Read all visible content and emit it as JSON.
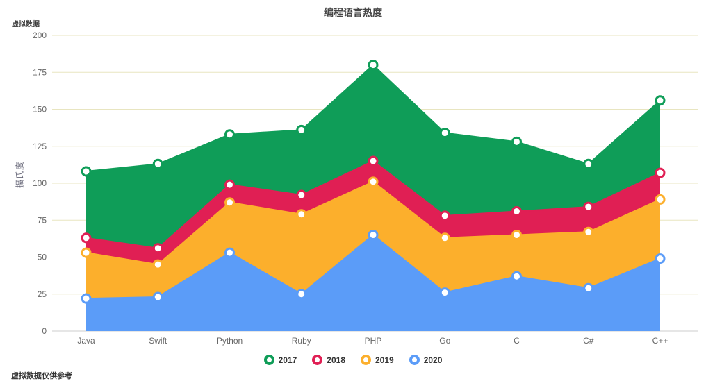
{
  "annotations": {
    "top_left": "虚拟数据",
    "bottom_left": "虚拟数据仅供参考"
  },
  "chart_data": {
    "type": "area",
    "stacked": true,
    "title": "编程语言热度",
    "xlabel": "",
    "ylabel": "摄氏度",
    "ylim": [
      0,
      200
    ],
    "y_ticks": [
      0,
      25,
      50,
      75,
      100,
      125,
      150,
      175,
      200
    ],
    "grid": true,
    "legend_position": "bottom",
    "categories": [
      "Java",
      "Swift",
      "Python",
      "Ruby",
      "PHP",
      "Go",
      "C",
      "C#",
      "C++"
    ],
    "series": [
      {
        "name": "2020",
        "color": "#5B9CF8",
        "values": [
          22,
          23,
          53,
          25,
          65,
          26,
          37,
          29,
          49
        ]
      },
      {
        "name": "2019",
        "color": "#FCAF2C",
        "values": [
          31,
          22,
          34,
          54,
          36,
          37,
          28,
          38,
          40
        ]
      },
      {
        "name": "2018",
        "color": "#E01F54",
        "values": [
          10,
          11,
          12,
          13,
          14,
          15,
          16,
          17,
          18
        ]
      },
      {
        "name": "2017",
        "color": "#0F9D58",
        "values": [
          45,
          57,
          34,
          44,
          65,
          56,
          47,
          29,
          49
        ]
      }
    ],
    "stacking_order_bottom_to_top": [
      "2020",
      "2019",
      "2018",
      "2017"
    ],
    "cumulative_tops": {
      "2020": [
        22,
        23,
        53,
        25,
        65,
        26,
        37,
        29,
        49
      ],
      "2019": [
        53,
        45,
        87,
        79,
        101,
        63,
        65,
        67,
        89
      ],
      "2018": [
        63,
        56,
        99,
        92,
        115,
        78,
        81,
        84,
        107
      ],
      "2017": [
        108,
        113,
        133,
        136,
        180,
        134,
        128,
        113,
        156
      ]
    },
    "colors": {
      "grid": "#E8E5C0",
      "axis": "#CCCCCC",
      "tick_text": "#666666",
      "title_text": "#464646"
    }
  },
  "legend": {
    "items": [
      {
        "label": "2017",
        "color": "#0F9D58"
      },
      {
        "label": "2018",
        "color": "#E01F54"
      },
      {
        "label": "2019",
        "color": "#FCAF2C"
      },
      {
        "label": "2020",
        "color": "#5B9CF8"
      }
    ]
  }
}
